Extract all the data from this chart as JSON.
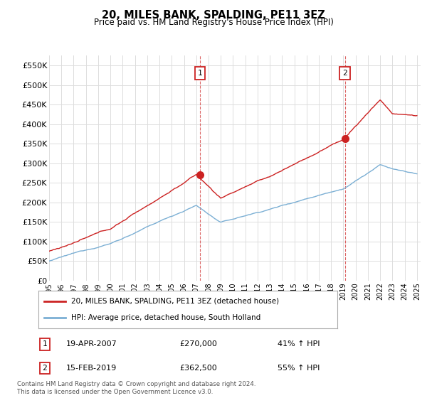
{
  "title": "20, MILES BANK, SPALDING, PE11 3EZ",
  "subtitle": "Price paid vs. HM Land Registry's House Price Index (HPI)",
  "ylabel_ticks": [
    "£0",
    "£50K",
    "£100K",
    "£150K",
    "£200K",
    "£250K",
    "£300K",
    "£350K",
    "£400K",
    "£450K",
    "£500K",
    "£550K"
  ],
  "ytick_vals": [
    0,
    50000,
    100000,
    150000,
    200000,
    250000,
    300000,
    350000,
    400000,
    450000,
    500000,
    550000
  ],
  "ylim": [
    0,
    575000
  ],
  "hpi_color": "#7bafd4",
  "price_color": "#cc2222",
  "sale1_year": 2007.296,
  "sale1_price": 270000,
  "sale1_date": "19-APR-2007",
  "sale1_pct": "41% ↑ HPI",
  "sale2_year": 2019.12,
  "sale2_price": 362500,
  "sale2_date": "15-FEB-2019",
  "sale2_pct": "55% ↑ HPI",
  "legend_line1": "20, MILES BANK, SPALDING, PE11 3EZ (detached house)",
  "legend_line2": "HPI: Average price, detached house, South Holland",
  "footnote": "Contains HM Land Registry data © Crown copyright and database right 2024.\nThis data is licensed under the Open Government Licence v3.0.",
  "background_color": "#ffffff",
  "grid_color": "#dddddd"
}
